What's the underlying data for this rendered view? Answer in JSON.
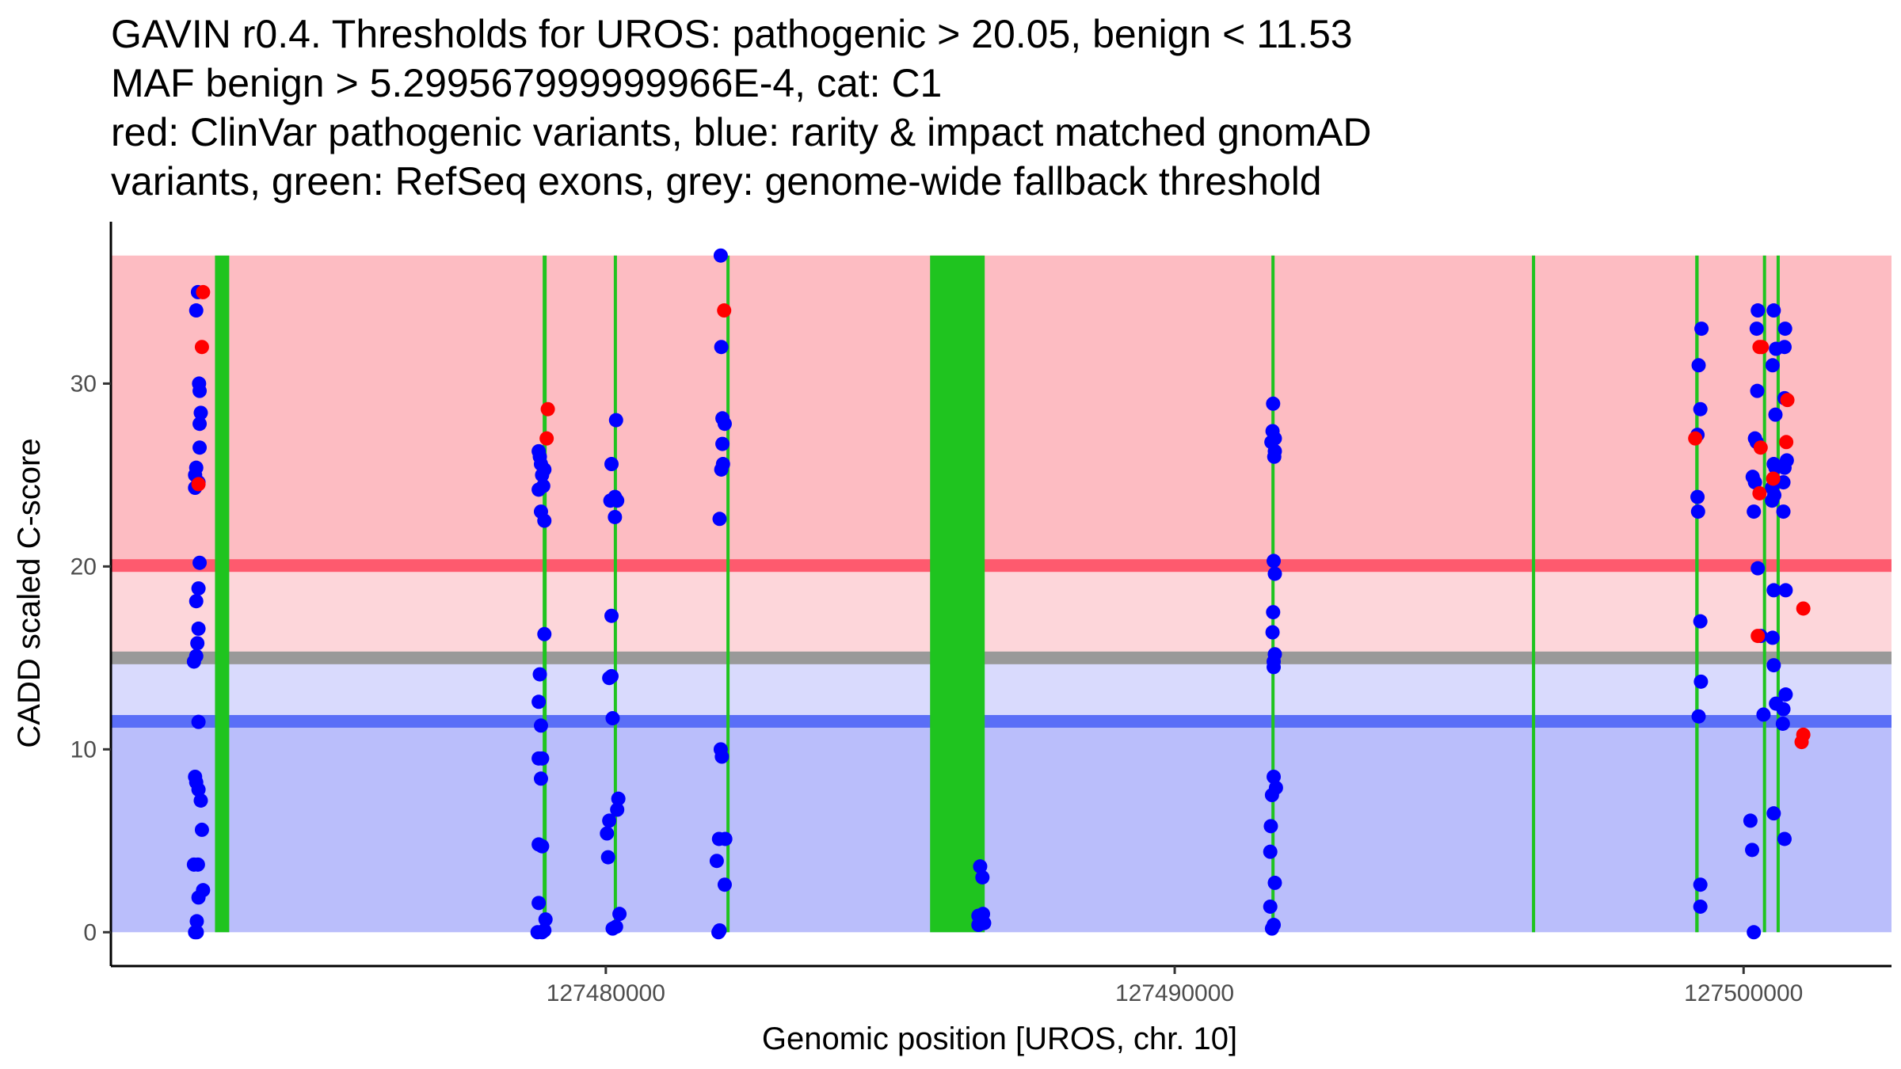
{
  "title_lines": [
    "GAVIN r0.4. Thresholds for UROS: pathogenic > 20.05, benign < 11.53",
    "MAF benign > 5.299567999999966E-4, cat: C1",
    "red: ClinVar pathogenic variants, blue: rarity & impact matched gnomAD",
    "variants, green: RefSeq exons, grey: genome-wide fallback threshold"
  ],
  "chart_data": {
    "type": "scatter",
    "xlabel": "Genomic position [UROS, chr. 10]",
    "ylabel": "CADD scaled C-score",
    "xlim": [
      127471300,
      127502600
    ],
    "ylim": [
      -1.85,
      38.85
    ],
    "x_ticks": [
      127480000,
      127490000,
      127500000
    ],
    "x_tick_labels": [
      "127480000",
      "127490000",
      "127500000"
    ],
    "y_ticks": [
      0,
      10,
      20,
      30
    ],
    "y_tick_labels": [
      "0",
      "10",
      "20",
      "30"
    ],
    "colors": {
      "pathogenic_region": "#fdbcc2",
      "mid_pathogenic_region": "#fdd6da",
      "mid_benign_region": "#d9dafd",
      "benign_region": "#babefb",
      "pathogenic_line": "#fe5a6e",
      "benign_line": "#5a6ef7",
      "fallback_line": "#999999",
      "exon": "#1fc41f",
      "pathogenic_point": "#ff0000",
      "benign_point": "#0000ff"
    },
    "regions": [
      {
        "name": "pathogenic",
        "y0": 20.05,
        "y1": 37
      },
      {
        "name": "above-fallback",
        "y0": 15,
        "y1": 20.05
      },
      {
        "name": "below-fallback",
        "y0": 11.53,
        "y1": 15
      },
      {
        "name": "benign",
        "y0": 0,
        "y1": 11.53
      }
    ],
    "thresholds": {
      "pathogenic": 20.05,
      "benign": 11.53,
      "fallback": 15
    },
    "exons": [
      {
        "start": 127473130,
        "end": 127473380
      },
      {
        "start": 127478890,
        "end": 127478960
      },
      {
        "start": 127480140,
        "end": 127480190
      },
      {
        "start": 127482120,
        "end": 127482170
      },
      {
        "start": 127485700,
        "end": 127486660
      },
      {
        "start": 127491700,
        "end": 127491750
      },
      {
        "start": 127496280,
        "end": 127496330
      },
      {
        "start": 127499150,
        "end": 127499210
      },
      {
        "start": 127500340,
        "end": 127500380
      },
      {
        "start": 127500580,
        "end": 127500620
      }
    ],
    "series": [
      {
        "name": "gnomAD benign",
        "points": [
          [
            127472780,
            0.0
          ],
          [
            127472810,
            0.6
          ],
          [
            127472840,
            1.9
          ],
          [
            127472760,
            3.7
          ],
          [
            127472830,
            3.7
          ],
          [
            127472920,
            2.3
          ],
          [
            127472900,
            5.6
          ],
          [
            127472880,
            7.2
          ],
          [
            127472840,
            7.8
          ],
          [
            127472800,
            8.2
          ],
          [
            127472780,
            8.5
          ],
          [
            127472840,
            11.5
          ],
          [
            127472760,
            14.8
          ],
          [
            127472800,
            15.1
          ],
          [
            127472820,
            15.8
          ],
          [
            127472840,
            16.6
          ],
          [
            127472800,
            18.1
          ],
          [
            127472840,
            18.8
          ],
          [
            127472860,
            20.2
          ],
          [
            127472780,
            24.3
          ],
          [
            127472840,
            24.6
          ],
          [
            127472780,
            25.0
          ],
          [
            127472800,
            25.4
          ],
          [
            127472860,
            26.5
          ],
          [
            127472860,
            27.8
          ],
          [
            127472880,
            28.4
          ],
          [
            127472860,
            29.6
          ],
          [
            127472850,
            30.0
          ],
          [
            127472800,
            34.0
          ],
          [
            127472830,
            35.0
          ],
          [
            127472810,
            0.0
          ],
          [
            127478800,
            0.0
          ],
          [
            127478880,
            0.0
          ],
          [
            127478920,
            0.1
          ],
          [
            127478940,
            0.7
          ],
          [
            127478820,
            1.6
          ],
          [
            127478880,
            4.7
          ],
          [
            127478820,
            4.8
          ],
          [
            127478860,
            8.4
          ],
          [
            127478820,
            9.5
          ],
          [
            127478880,
            9.5
          ],
          [
            127478860,
            11.3
          ],
          [
            127478820,
            12.6
          ],
          [
            127478840,
            14.1
          ],
          [
            127478920,
            16.3
          ],
          [
            127478920,
            22.5
          ],
          [
            127478860,
            23.0
          ],
          [
            127478820,
            24.2
          ],
          [
            127478900,
            24.4
          ],
          [
            127478880,
            25.0
          ],
          [
            127478920,
            25.3
          ],
          [
            127478860,
            25.6
          ],
          [
            127478840,
            26.0
          ],
          [
            127478820,
            26.3
          ],
          [
            127480120,
            0.2
          ],
          [
            127480180,
            0.3
          ],
          [
            127480240,
            1.0
          ],
          [
            127480040,
            4.1
          ],
          [
            127480020,
            5.4
          ],
          [
            127480060,
            6.1
          ],
          [
            127480200,
            6.7
          ],
          [
            127480220,
            7.3
          ],
          [
            127480120,
            11.7
          ],
          [
            127480060,
            13.9
          ],
          [
            127480100,
            14.0
          ],
          [
            127480100,
            17.3
          ],
          [
            127480160,
            22.7
          ],
          [
            127480080,
            23.6
          ],
          [
            127480200,
            23.6
          ],
          [
            127480160,
            23.8
          ],
          [
            127480100,
            25.6
          ],
          [
            127480180,
            28.0
          ],
          [
            127481980,
            0.0
          ],
          [
            127482000,
            0.1
          ],
          [
            127482090,
            2.6
          ],
          [
            127481950,
            3.9
          ],
          [
            127481990,
            5.1
          ],
          [
            127482100,
            5.1
          ],
          [
            127482040,
            9.6
          ],
          [
            127482020,
            10.0
          ],
          [
            127482000,
            22.6
          ],
          [
            127482030,
            25.3
          ],
          [
            127482060,
            25.6
          ],
          [
            127482050,
            26.7
          ],
          [
            127482090,
            27.8
          ],
          [
            127482050,
            28.1
          ],
          [
            127482030,
            32.0
          ],
          [
            127482020,
            37.0
          ],
          [
            127491710,
            0.2
          ],
          [
            127491740,
            0.4
          ],
          [
            127491680,
            1.4
          ],
          [
            127491760,
            2.7
          ],
          [
            127491680,
            4.4
          ],
          [
            127491690,
            5.8
          ],
          [
            127491710,
            7.5
          ],
          [
            127491780,
            7.9
          ],
          [
            127491740,
            8.5
          ],
          [
            127491740,
            14.5
          ],
          [
            127491740,
            14.8
          ],
          [
            127491760,
            15.2
          ],
          [
            127491720,
            16.4
          ],
          [
            127491730,
            17.5
          ],
          [
            127491760,
            19.6
          ],
          [
            127491740,
            20.3
          ],
          [
            127491750,
            26.0
          ],
          [
            127491760,
            26.3
          ],
          [
            127491700,
            26.8
          ],
          [
            127491760,
            27.0
          ],
          [
            127491720,
            27.4
          ],
          [
            127491730,
            28.9
          ],
          [
            127486550,
            0.4
          ],
          [
            127486650,
            0.5
          ],
          [
            127486550,
            0.9
          ],
          [
            127486630,
            1.0
          ],
          [
            127486620,
            3.0
          ],
          [
            127486580,
            3.6
          ],
          [
            127499240,
            1.4
          ],
          [
            127499240,
            2.6
          ],
          [
            127499210,
            11.8
          ],
          [
            127499250,
            13.7
          ],
          [
            127499240,
            17.0
          ],
          [
            127499200,
            23.0
          ],
          [
            127499190,
            23.8
          ],
          [
            127499190,
            27.2
          ],
          [
            127499240,
            28.6
          ],
          [
            127499210,
            31.0
          ],
          [
            127499260,
            33.0
          ],
          [
            127500180,
            0.0
          ],
          [
            127500150,
            4.5
          ],
          [
            127500120,
            6.1
          ],
          [
            127500350,
            11.9
          ],
          [
            127500300,
            16.2
          ],
          [
            127500250,
            19.9
          ],
          [
            127500180,
            23.0
          ],
          [
            127500200,
            24.6
          ],
          [
            127500160,
            24.9
          ],
          [
            127500230,
            26.8
          ],
          [
            127500200,
            27.0
          ],
          [
            127500240,
            29.6
          ],
          [
            127500230,
            33.0
          ],
          [
            127500250,
            34.0
          ],
          [
            127500530,
            6.5
          ],
          [
            127500570,
            12.5
          ],
          [
            127500530,
            14.6
          ],
          [
            127500510,
            16.1
          ],
          [
            127500530,
            18.7
          ],
          [
            127500500,
            23.6
          ],
          [
            127500540,
            23.9
          ],
          [
            127500500,
            24.3
          ],
          [
            127500560,
            24.6
          ],
          [
            127500560,
            25.4
          ],
          [
            127500530,
            25.6
          ],
          [
            127500560,
            28.3
          ],
          [
            127500510,
            31.0
          ],
          [
            127500570,
            31.9
          ],
          [
            127500530,
            34.0
          ],
          [
            127500720,
            5.1
          ],
          [
            127500690,
            11.4
          ],
          [
            127500700,
            12.2
          ],
          [
            127500740,
            13.0
          ],
          [
            127500740,
            18.7
          ],
          [
            127500700,
            23.0
          ],
          [
            127500700,
            24.6
          ],
          [
            127500720,
            25.4
          ],
          [
            127500760,
            25.8
          ],
          [
            127500720,
            29.2
          ],
          [
            127500720,
            32.0
          ],
          [
            127500730,
            33.0
          ]
        ]
      },
      {
        "name": "ClinVar pathogenic",
        "points": [
          [
            127472920,
            35.0
          ],
          [
            127472900,
            32.0
          ],
          [
            127472840,
            24.5
          ],
          [
            127478960,
            27.0
          ],
          [
            127478980,
            28.6
          ],
          [
            127482080,
            34.0
          ],
          [
            127499150,
            27.0
          ],
          [
            127500250,
            16.2
          ],
          [
            127500280,
            24.0
          ],
          [
            127500300,
            26.5
          ],
          [
            127500280,
            32.0
          ],
          [
            127500320,
            32.0
          ],
          [
            127500520,
            24.8
          ],
          [
            127500750,
            26.8
          ],
          [
            127500770,
            29.1
          ],
          [
            127501020,
            10.4
          ],
          [
            127501050,
            10.8
          ],
          [
            127501050,
            17.7
          ]
        ]
      }
    ]
  }
}
